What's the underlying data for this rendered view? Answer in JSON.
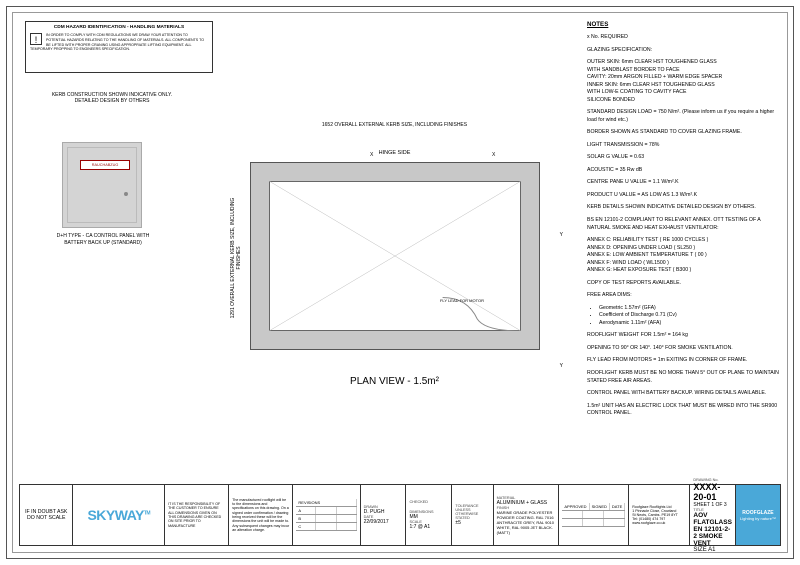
{
  "cdm": {
    "title": "CDM HAZARD IDENTIFICATION - HANDLING MATERIALS",
    "body": "IN ORDER TO COMPLY WITH CDM REGULATIONS WE DRAW YOUR ATTENTION TO POTENTIAL HAZARDS RELATING TO THE HANDLING OF MATERIALS. ALL COMPONENTS TO BE LIFTED WITH PROPER CRANING USING APPROPRIATE LIFTING EQUIPMENT. ALL TEMPORARY PROPPING TO ENGINEERS SPECIFICATION."
  },
  "kerbNote": "KERB CONSTRUCTION SHOWN INDICATIVE ONLY. DETAILED DESIGN BY OTHERS",
  "panelLabel": "RAUCHABZUG",
  "panelCaption": "D+H TYPE - CA CONTROL PANEL WITH BATTERY BACK UP (STANDARD)",
  "drawing": {
    "topDim": "1652 OVERALL EXTERNAL KERB SIZE, INCLUDING FINISHES",
    "leftDim": "1291 OVERALL EXTERNAL KERB SIZE, INCLUDING FINISHES",
    "hinge": "HINGE SIDE",
    "planTitle": "PLAN VIEW - 1.5m²",
    "fly": "FLY LEAD FOR MOTOR",
    "X": "X",
    "Y": "Y"
  },
  "notes": {
    "heading": "NOTES",
    "lines": [
      "x No. REQUIRED",
      "GLAZING SPECIFICATION:",
      "OUTER SKIN:  6mm CLEAR HST TOUGHENED GLASS\n                    WITH SANDBLAST BORDER TO FACE\nCAVITY:         20mm ARGON FILLED + WARM EDGE SPACER\nINNER SKIN:   6mm CLEAR HST TOUGHENED GLASS\n                    WITH LOW-E COATING TO CAVITY FACE\nSILICONE BONDED",
      "STANDARD DESIGN LOAD =  750 N/m². (Please inform us if you require a higher load for wind etc.)",
      "BORDER SHOWN AS STANDARD TO COVER GLAZING FRAME.",
      "LIGHT TRANSMISSION = 78%",
      "SOLAR G VALUE = 0.63",
      "ACOUSTIC = 35 Rw dB",
      "CENTRE PANE U VALUE = 1.1 W/m².K",
      "PRODUCT U VALUE = AS LOW AS 1.3 W/m².K",
      "KERB DETAILS SHOWN INDICATIVE DETAILED DESIGN BY OTHERS.",
      "BS EN 12101-2 COMPLIANT TO RELEVANT ANNEX. OTT TESTING OF A NATURAL SMOKE AND HEAT EXHAUST VENTILATOR:",
      "ANNEX C: RELIABILITY TEST ( RE 1000 CYCLES )\nANNEX D: OPENING UNDER LOAD ( SL250 )\nANNEX E: LOW AMBIENT TEMPERATURE T ( 00 )\nANNEX F: WIND LOAD ( WL1500 )\nANNEX G: HEAT EXPOSURE TEST ( B300 )",
      "COPY OF TEST REPORTS AVAILABLE.",
      "FREE AREA DIMS:"
    ],
    "bullets": [
      "Geometric 1.57m² (GFA)",
      "Coefficient of Discharge 0.71 (Cv)",
      "Aerodynamic 1.11m² (AFA)"
    ],
    "lines2": [
      "ROOFLIGHT WEIGHT FOR 1.5m² = 164 kg",
      "OPENING TO 90° OR 140°. 140° FOR SMOKE VENTILATION.",
      "FLY LEAD FROM MOTORS = 1m EXITING IN CORNER OF FRAME.",
      "ROOFLIGHT KERB MUST BE NO MORE THAN 5° OUT OF PLANE TO MAINTAIN STATED FREE AIR AREAS.",
      "CONTROL PANEL WITH BATTERY BACKUP. WIRING DETAILS AVAILABLE.",
      "1.5m² UNIT HAS AN ELECTRIC LOCK THAT MUST BE WIRED INTO THE SR900 CONTROL PANEL."
    ]
  },
  "title": {
    "scale": "IF IN DOUBT ASK DO NOT SCALE",
    "logo": "SKYWAY",
    "tm": "TM",
    "resp": "IT IS THE RESPONSIBILITY OF THE CUSTOMER TO ENSURE ALL DIMENSIONS GIVEN ON THIS DRAWING ARE CHECKED ON SITE PRIOR TO MANUFACTURE",
    "resp2": "The manufactured rooflight will be to the dimensions and specifications on this drawing. On a signed order confirmation / drawing being received these will be the dimensions the unit will be made to. Any subsequent changes may incur an alteration charge.",
    "drawn": "D. PUGH",
    "date": "22/09/2017",
    "dim": "MM",
    "scale2": "1:7 @ A1",
    "tol": "±5",
    "material": "ALUMINIUM + GLASS",
    "finish": "MARINE GRADE POLYESTER POWDER COATING. RAL 7016 ANTHRACITE GREY, RAL 9010 WHITE, RAL 9005 JET BLACK. (MATT)",
    "addr": "Roofglaze Rooflights Ltd\n1 Pinnacle Close, Crowland\nSt Neots, Cambs. PE19 8YT\nTel: (01480) 474 797\nwww.roofglaze.co.uk",
    "dwgno": "XXXX-20-01",
    "sheet": "SHEET 1 OF 3",
    "dwgtitle": "AOV FLATGLASS EN 12101-2-2 SMOKE VENT",
    "size": "A1",
    "roof": "ROOFGLAZE",
    "tag": "Lighting by nature™"
  }
}
